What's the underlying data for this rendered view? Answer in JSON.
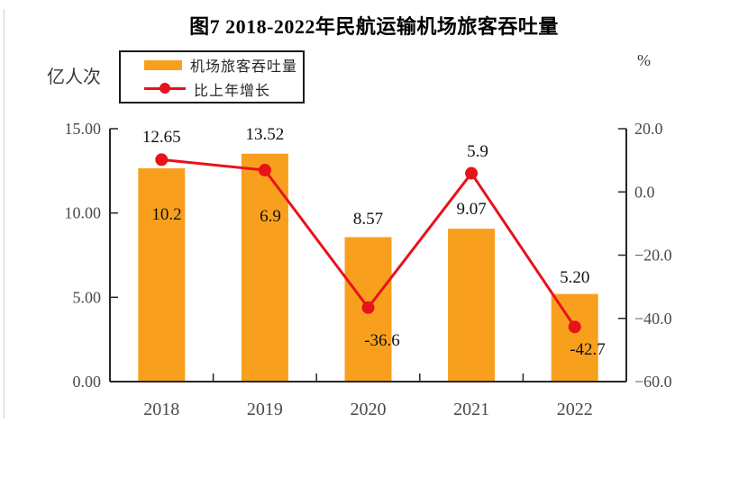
{
  "colors": {
    "bar": "#F8A01D",
    "line": "#E8121A",
    "axis": "#262626",
    "tick_text": "#4a4a4a",
    "label_text": "#111111"
  },
  "chart_data": {
    "type": "combo",
    "title": "图7 2018-2022年民航运输机场旅客吞吐量",
    "categories": [
      "2018",
      "2019",
      "2020",
      "2021",
      "2022"
    ],
    "series": [
      {
        "name": "机场旅客吞吐量",
        "type": "bar",
        "axis": "left",
        "values": [
          12.65,
          13.52,
          8.57,
          9.07,
          5.2
        ],
        "labels": [
          "12.65",
          "13.52",
          "8.57",
          "9.07",
          "5.20"
        ]
      },
      {
        "name": "比上年增长",
        "type": "line",
        "axis": "right",
        "values": [
          10.2,
          6.9,
          -36.6,
          5.9,
          -42.7
        ],
        "labels": [
          "10.2",
          "6.9",
          "-36.6",
          "5.9",
          "-42.7"
        ]
      }
    ],
    "left_axis": {
      "unit": "亿人次",
      "min": 0,
      "max": 15,
      "ticks": [
        15,
        10,
        5,
        0
      ],
      "tick_labels": [
        "15.00",
        "10.00",
        "5.00",
        "0.00"
      ]
    },
    "right_axis": {
      "unit": "%",
      "min": -60,
      "max": 20,
      "ticks": [
        20,
        0,
        -20,
        -40,
        -60
      ],
      "tick_labels": [
        "20.0",
        "0.0",
        "−20.0",
        "−40.0",
        "−60.0"
      ]
    },
    "legend_position": "top-left",
    "grid": false
  }
}
